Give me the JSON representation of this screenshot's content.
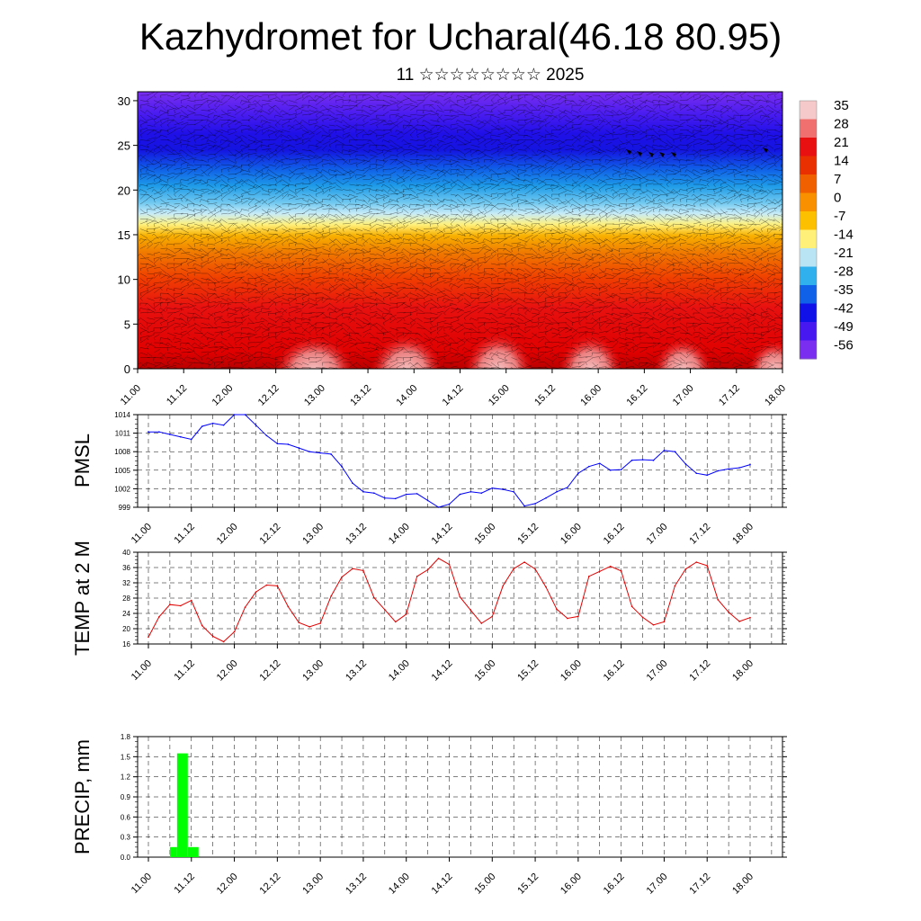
{
  "title": "Kazhydromet for Ucharal(46.18 80.95)",
  "subtitle": "11 ☆☆☆☆☆☆☆☆ 2025",
  "time_labels": [
    "11.00",
    "11.12",
    "12.00",
    "12.12",
    "13.00",
    "13.12",
    "14.00",
    "14.12",
    "15.00",
    "15.12",
    "16.00",
    "16.12",
    "17.00",
    "17.12",
    "18.00"
  ],
  "chart_data": [
    {
      "type": "heatmap",
      "panel": "cross-section",
      "x": "time_labels",
      "ylim": [
        0,
        31
      ],
      "yticks": [
        "0",
        "5",
        "10",
        "15",
        "20",
        "25",
        "30"
      ],
      "colorbar": {
        "labels": [
          "35",
          "28",
          "21",
          "14",
          "7",
          "0",
          "-7",
          "-14",
          "-21",
          "-28",
          "-35",
          "-42",
          "-49",
          "-56"
        ],
        "colors": [
          "#f5c9c9",
          "#f07070",
          "#e81010",
          "#e83000",
          "#f06000",
          "#f89000",
          "#fcc000",
          "#fff07a",
          "#b8e4f4",
          "#30b0ec",
          "#1060e8",
          "#1010e8",
          "#4818f0",
          "#7a2ef0"
        ]
      },
      "wind_barbs": true
    },
    {
      "type": "line",
      "panel": "pmsl",
      "ylabel": "PMSL",
      "ylim": [
        999,
        1014
      ],
      "yticks": [
        "999",
        "1002",
        "1005",
        "1008",
        "1011",
        "1014"
      ],
      "color": "#0000ff",
      "x": [
        0,
        3,
        6,
        9,
        12,
        15,
        18,
        21,
        24,
        27,
        30,
        33,
        36,
        39,
        42,
        45,
        48,
        51,
        54,
        57,
        60,
        63,
        66,
        69,
        72,
        75,
        78,
        81,
        84,
        87,
        90,
        93,
        96,
        99,
        102,
        105,
        108,
        111,
        114,
        117,
        120,
        123,
        126,
        129,
        132,
        135,
        138,
        141,
        144,
        147,
        150,
        153,
        156,
        159,
        162,
        165,
        168
      ],
      "values": [
        1011.2,
        1011.2,
        1010.8,
        1010.4,
        1010.0,
        1012.1,
        1012.6,
        1012.3,
        1014.0,
        1014.0,
        1012.3,
        1010.6,
        1009.3,
        1009.2,
        1008.6,
        1008.0,
        1007.8,
        1007.6,
        1005.6,
        1002.9,
        1001.5,
        1001.3,
        1000.5,
        1000.4,
        1001.1,
        1001.2,
        1000.1,
        999.0,
        999.5,
        1001.1,
        1001.5,
        1001.3,
        1002.1,
        1001.9,
        1001.5,
        999.2,
        999.6,
        1000.5,
        1001.5,
        1002.2,
        1004.5,
        1005.6,
        1006.1,
        1005.0,
        1005.1,
        1006.6,
        1006.7,
        1006.6,
        1008.2,
        1008.0,
        1006.0,
        1004.5,
        1004.2,
        1004.9,
        1005.2,
        1005.4,
        1005.9
      ]
    },
    {
      "type": "line",
      "panel": "temp",
      "ylabel": "TEMP at 2 M",
      "ylim": [
        16,
        40
      ],
      "yticks": [
        "16",
        "20",
        "24",
        "28",
        "32",
        "36",
        "40"
      ],
      "color": "#e00000",
      "x": [
        0,
        3,
        6,
        9,
        12,
        15,
        18,
        21,
        24,
        27,
        30,
        33,
        36,
        39,
        42,
        45,
        48,
        51,
        54,
        57,
        60,
        63,
        66,
        69,
        72,
        75,
        78,
        81,
        84,
        87,
        90,
        93,
        96,
        99,
        102,
        105,
        108,
        111,
        114,
        117,
        120,
        123,
        126,
        129,
        132,
        135,
        138,
        141,
        144,
        147,
        150,
        153,
        156,
        159,
        162,
        165,
        168
      ],
      "values": [
        17.8,
        23.1,
        26.3,
        26.0,
        27.4,
        20.8,
        18.0,
        16.6,
        19.2,
        25.6,
        29.6,
        31.4,
        31.2,
        25.8,
        21.6,
        20.5,
        21.4,
        28.5,
        33.5,
        35.7,
        35.2,
        28.1,
        25.0,
        21.8,
        23.8,
        33.7,
        35.4,
        38.4,
        36.8,
        28.3,
        24.8,
        21.4,
        23.2,
        31.2,
        35.7,
        37.4,
        35.6,
        30.9,
        25.1,
        22.7,
        23.2,
        33.7,
        35.0,
        36.3,
        35.1,
        25.8,
        23.0,
        21.0,
        21.8,
        31.2,
        35.6,
        37.4,
        36.5,
        27.6,
        24.3,
        21.9,
        22.9
      ]
    },
    {
      "type": "bar",
      "panel": "precip",
      "ylabel": "PRECIP, mm",
      "ylim": [
        0,
        1.8
      ],
      "yticks": [
        "0.0",
        "0.3",
        "0.6",
        "0.9",
        "1.2",
        "1.5",
        "1.8"
      ],
      "color": "#00ff00",
      "bars": [
        {
          "x0": 6,
          "x1": 8,
          "value": 0.15
        },
        {
          "x0": 8,
          "x1": 11,
          "value": 1.55
        },
        {
          "x0": 11,
          "x1": 14,
          "value": 0.15
        }
      ]
    }
  ]
}
